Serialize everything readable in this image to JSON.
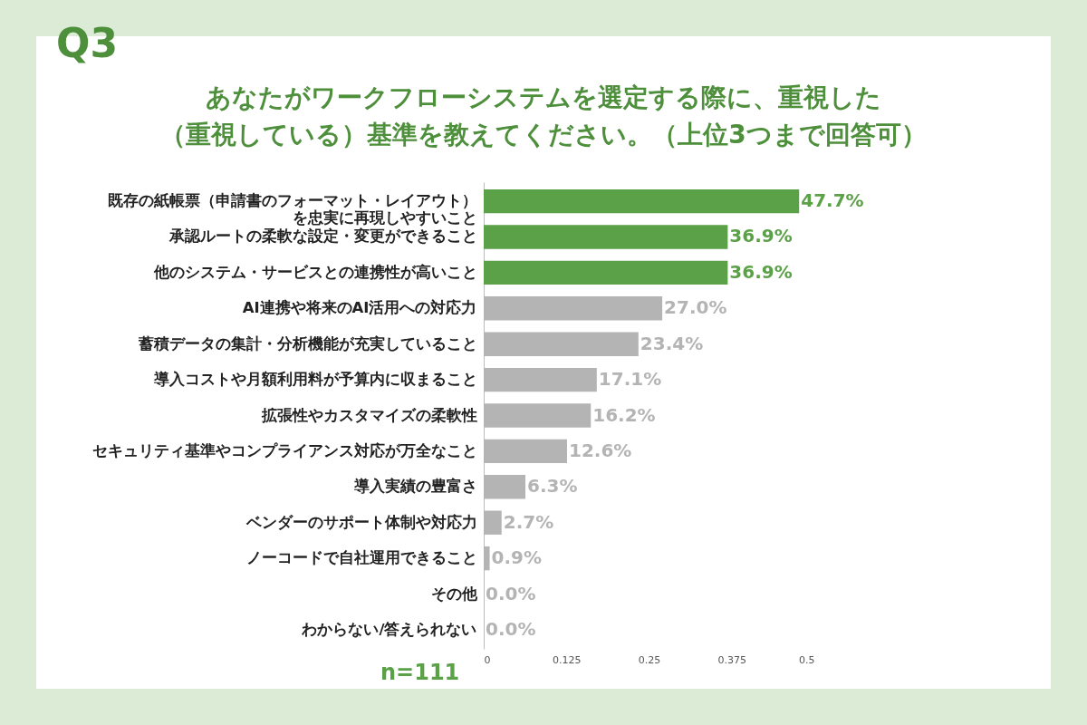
{
  "chart_data": {
    "type": "bar",
    "orientation": "horizontal",
    "title": "あなたがワークフローシステムを選定する際に、重視した（重視している）基準を教えてください。（上位3つまで回答可）",
    "annotations": [
      "Q3",
      "n=111"
    ],
    "categories": [
      "既存の紙帳票（申請書のフォーマット・レイアウト）を忠実に再現しやすいこと",
      "承認ルートの柔軟な設定・変更ができること",
      "他のシステム・サービスとの連携性が高いこと",
      "AI連携や将来のAI活用への対応力",
      "蓄積データの集計・分析機能が充実していること",
      "導入コストや月額利用料が予算内に収まること",
      "拡張性やカスタマイズの柔軟性",
      "セキュリティ基準やコンプライアンス対応が万全なこと",
      "導入実績の豊富さ",
      "ベンダーのサポート体制や対応力",
      "ノーコードで自社運用できること",
      "その他",
      "わからない/答えられない"
    ],
    "values": [
      0.477,
      0.369,
      0.369,
      0.27,
      0.234,
      0.171,
      0.162,
      0.126,
      0.063,
      0.027,
      0.009,
      0,
      0
    ],
    "value_labels": [
      "47.7%",
      "36.9%",
      "36.9%",
      "27.0%",
      "23.4%",
      "17.1%",
      "16.2%",
      "12.6%",
      "6.3%",
      "2.7%",
      "0.9%",
      "0.0%",
      "0.0%"
    ],
    "colors": [
      "#5aa147",
      "#5aa147",
      "#5aa147",
      "#b4b4b4",
      "#b4b4b4",
      "#b4b4b4",
      "#b4b4b4",
      "#b4b4b4",
      "#b4b4b4",
      "#b4b4b4",
      "#b4b4b4",
      "#b4b4b4",
      "#b4b4b4"
    ],
    "xlim": [
      0,
      0.5
    ],
    "xticks": [
      0,
      0.125,
      0.25,
      0.375,
      0.5
    ]
  }
}
